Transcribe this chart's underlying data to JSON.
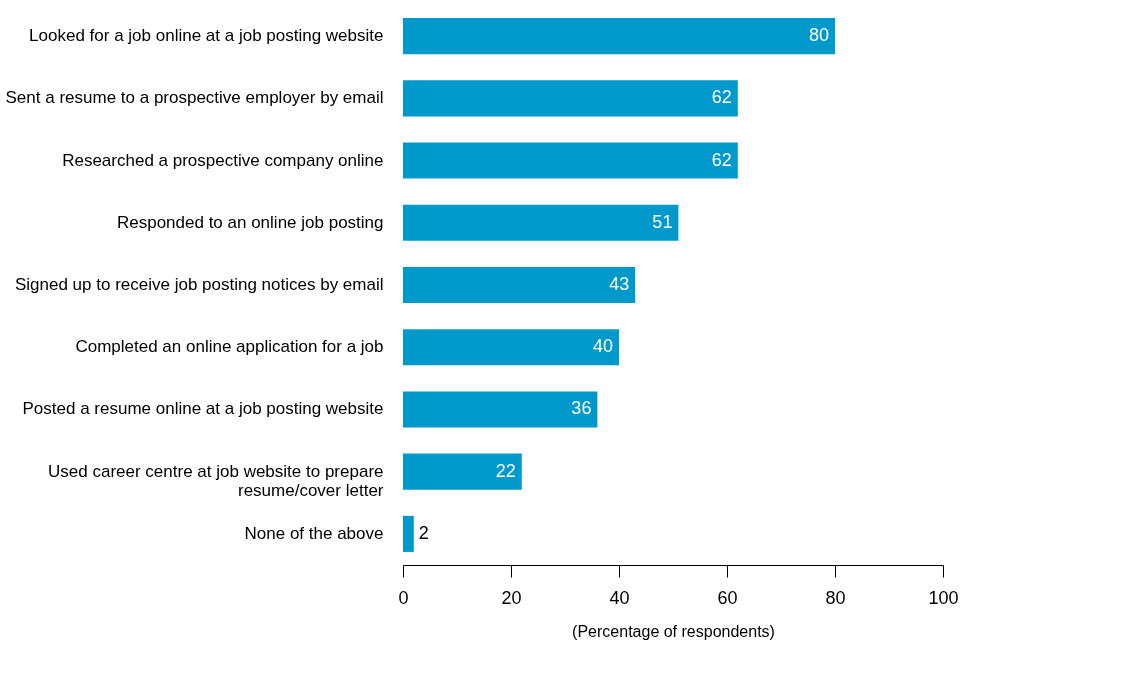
{
  "chart_data": {
    "type": "bar",
    "orientation": "horizontal",
    "xlabel": "(Percentage of respondents)",
    "categories": [
      "Looked for a job online at a job posting website",
      "Sent a resume to a prospective employer by email",
      "Researched a prospective company online",
      "Responded to an online job posting",
      "Signed up to receive job posting notices by email",
      "Completed an online application for a job",
      "Posted a resume online at a job posting website",
      "Used career centre at job website to prepare resume/cover letter",
      "None of the above"
    ],
    "values": [
      80,
      62,
      62,
      51,
      43,
      40,
      36,
      22,
      2
    ],
    "color": "#0099cc",
    "xlim": [
      0,
      100
    ],
    "xticks": [
      0,
      20,
      40,
      60,
      80,
      100
    ],
    "data_labels": true,
    "grid": false
  }
}
